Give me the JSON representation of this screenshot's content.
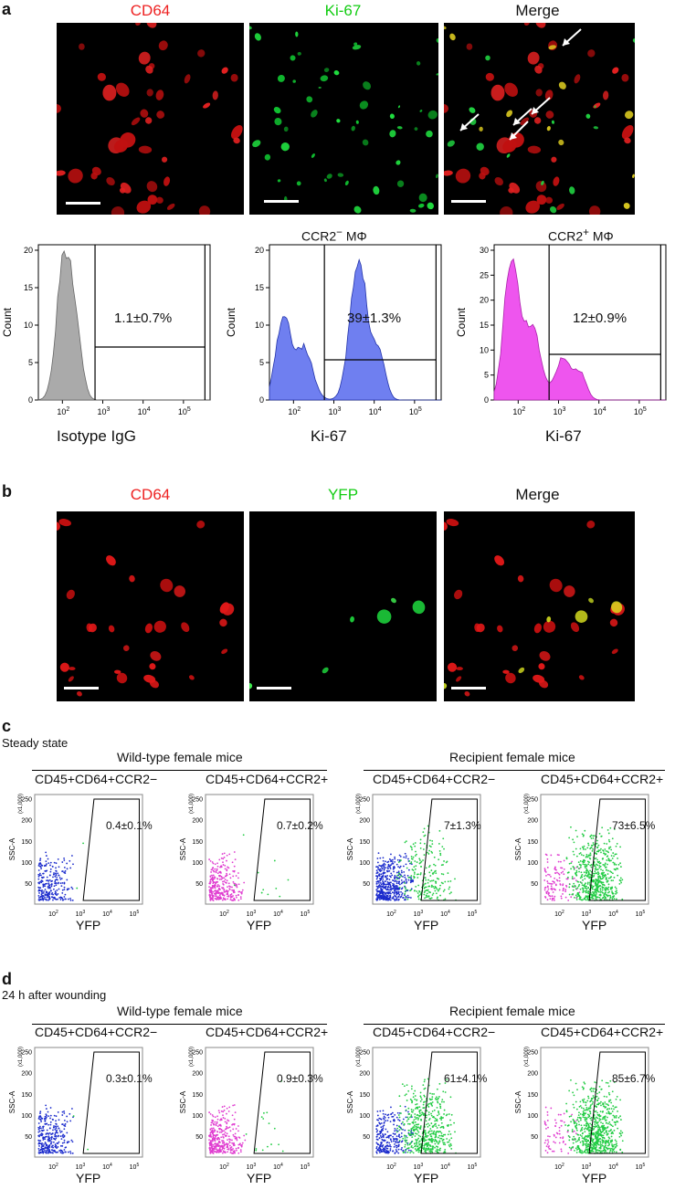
{
  "a": {
    "label": "a",
    "titles": [
      "CD64",
      "Ki-67",
      "Merge"
    ],
    "histograms": [
      {
        "title": "",
        "xlabel": "Isotype IgG",
        "ylabel": "Count",
        "value": "1.1±0.7%",
        "yticks": [
          "0",
          "5",
          "10",
          "15",
          "20"
        ],
        "color": "#aaaaaa"
      },
      {
        "title_main": "CCR2",
        "title_sup": "−",
        "title_end": " MΦ",
        "xlabel": "Ki-67",
        "ylabel": "Count",
        "value": "39±1.3%",
        "yticks": [
          "0",
          "5",
          "10",
          "15",
          "20"
        ],
        "color": "#6f7ff0"
      },
      {
        "title_main": "CCR2",
        "title_sup": "+",
        "title_end": " MΦ",
        "xlabel": "Ki-67",
        "ylabel": "Count",
        "value": "12±0.9%",
        "yticks": [
          "0",
          "5",
          "10",
          "15",
          "20",
          "25",
          "30"
        ],
        "color": "#ee44ee"
      }
    ],
    "xticks": [
      "10",
      "2",
      "10",
      "3",
      "10",
      "4",
      "10",
      "5"
    ]
  },
  "b": {
    "label": "b",
    "titles": [
      "CD64",
      "YFP",
      "Merge"
    ]
  },
  "c": {
    "label": "c",
    "subtitle": "Steady state",
    "group1": "Wild-type female mice",
    "group2": "Recipient female mice",
    "plots": [
      {
        "title": "CD45+CD64+CCR2−",
        "value": "0.4±0.1%"
      },
      {
        "title": "CD45+CD64+CCR2+",
        "value": "0.7±0.2%"
      },
      {
        "title": "CD45+CD64+CCR2−",
        "value": "7±1.3%"
      },
      {
        "title": "CD45+CD64+CCR2+",
        "value": "73±6.5%"
      }
    ]
  },
  "d": {
    "label": "d",
    "subtitle": "24 h after wounding",
    "group1": "Wild-type female mice",
    "group2": "Recipient female mice",
    "plots": [
      {
        "title": "CD45+CD64+CCR2−",
        "value": "0.3±0.1%"
      },
      {
        "title": "CD45+CD64+CCR2+",
        "value": "0.9±0.3%"
      },
      {
        "title": "CD45+CD64+CCR2−",
        "value": "61±4.1%"
      },
      {
        "title": "CD45+CD64+CCR2+",
        "value": "85±6.7%"
      }
    ]
  },
  "flow": {
    "ylabel": "SSC-A",
    "yunit": "(x1,000)",
    "yticks": [
      "50",
      "100",
      "150",
      "200",
      "250"
    ],
    "xlabel": "YFP"
  }
}
